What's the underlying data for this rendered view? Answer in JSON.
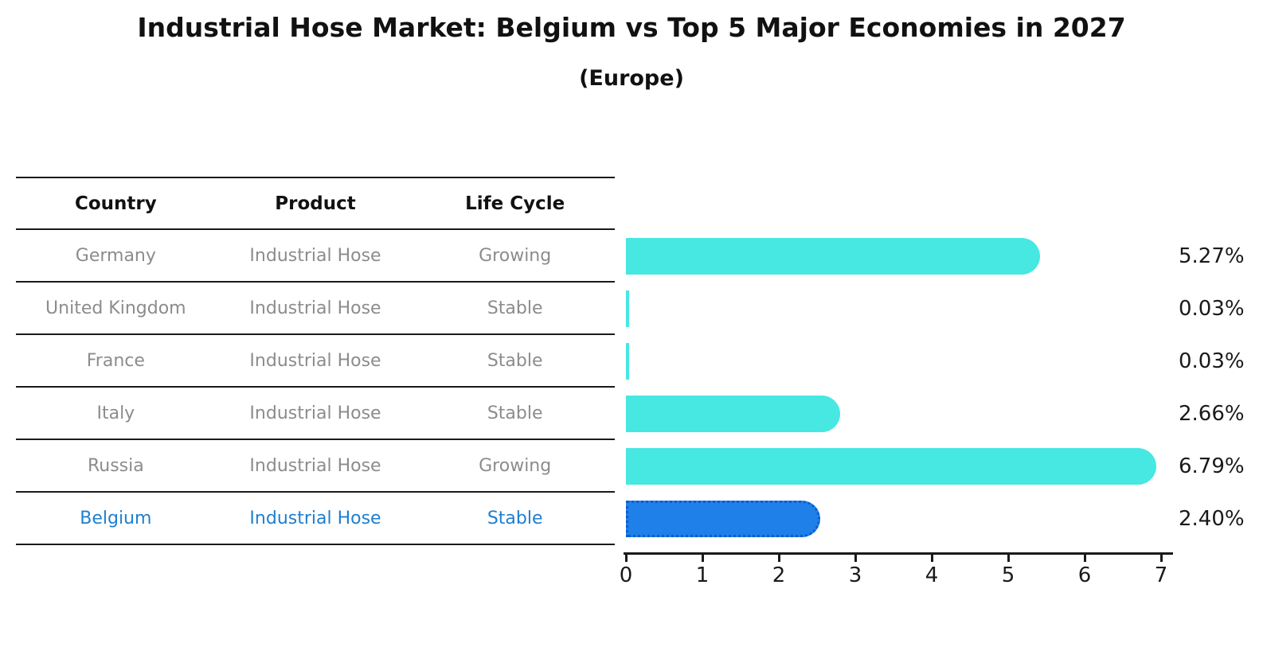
{
  "title": "Industrial Hose Market: Belgium vs Top 5 Major Economies in 2027",
  "subtitle": "(Europe)",
  "table": {
    "headers": [
      "Country",
      "Product",
      "Life Cycle"
    ],
    "rows": [
      {
        "country": "Germany",
        "product": "Industrial Hose",
        "life_cycle": "Growing",
        "highlight": false
      },
      {
        "country": "United Kingdom",
        "product": "Industrial Hose",
        "life_cycle": "Stable",
        "highlight": false
      },
      {
        "country": "France",
        "product": "Industrial Hose",
        "life_cycle": "Stable",
        "highlight": false
      },
      {
        "country": "Italy",
        "product": "Industrial Hose",
        "life_cycle": "Stable",
        "highlight": false
      },
      {
        "country": "Russia",
        "product": "Industrial Hose",
        "life_cycle": "Growing",
        "highlight": false
      },
      {
        "country": "Belgium",
        "product": "Industrial Hose",
        "life_cycle": "Stable",
        "highlight": true
      }
    ]
  },
  "chart_data": {
    "type": "bar",
    "orientation": "horizontal",
    "title": "Industrial Hose Market: Belgium vs Top 5 Major Economies in 2027 (Europe)",
    "xlabel": "",
    "ylabel": "",
    "categories": [
      "Germany",
      "United Kingdom",
      "France",
      "Italy",
      "Russia",
      "Belgium"
    ],
    "values": [
      5.27,
      0.03,
      0.03,
      2.66,
      6.79,
      2.4
    ],
    "value_labels": [
      "5.27%",
      "0.03%",
      "0.03%",
      "2.66%",
      "6.79%",
      "2.40%"
    ],
    "x_ticks": [
      0,
      1,
      2,
      3,
      4,
      5,
      6,
      7
    ],
    "xlim": [
      0,
      7
    ],
    "grid": false,
    "legend": false,
    "bar_color": "#47e7e2",
    "highlight_index": 5,
    "highlight_color": "#1e80e8",
    "highlight_border_color": "#0d5cd0",
    "highlight_text_color": "#1e7fd0"
  },
  "colors": {
    "background": "#ffffff",
    "text_primary": "#111111",
    "text_secondary": "#8c8c8c",
    "axis": "#1a1a1a"
  }
}
